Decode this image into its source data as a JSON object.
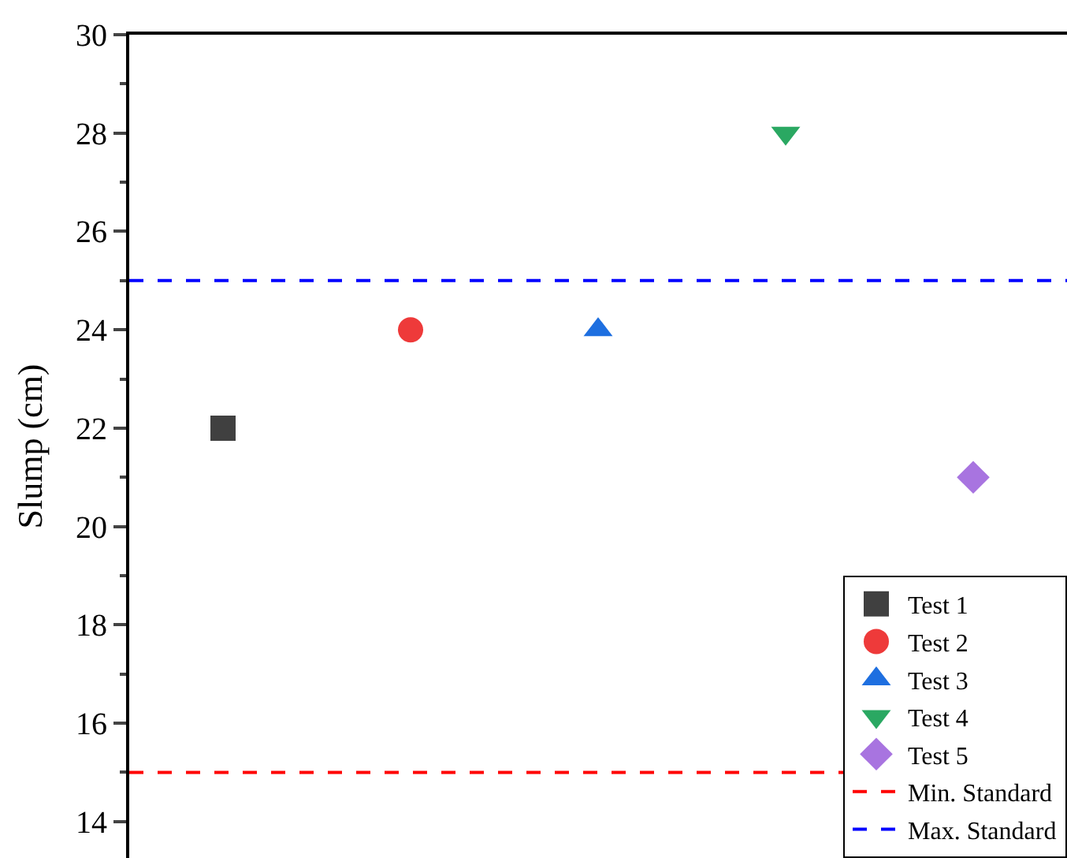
{
  "chart_data": {
    "type": "scatter",
    "ylabel": "Slump (cm)",
    "categories": [
      null,
      null,
      null,
      null,
      null
    ],
    "series": [
      {
        "name": "Test 1",
        "color": "#404040",
        "marker": "square",
        "values": [
          22,
          null,
          null,
          null,
          null
        ]
      },
      {
        "name": "Test 2",
        "color": "#ee3a3a",
        "marker": "circle",
        "values": [
          null,
          24,
          null,
          null,
          null
        ]
      },
      {
        "name": "Test 3",
        "color": "#1e6fe0",
        "marker": "triangle",
        "values": [
          null,
          null,
          24,
          null,
          null
        ]
      },
      {
        "name": "Test 4",
        "color": "#2aa862",
        "marker": "triangle-down",
        "values": [
          null,
          null,
          null,
          28,
          null
        ]
      },
      {
        "name": "Test 5",
        "color": "#a874e0",
        "marker": "diamond",
        "values": [
          null,
          null,
          null,
          null,
          21
        ]
      }
    ],
    "ref_lines": [
      {
        "axis": "y",
        "value": 15,
        "label": "Min. Standard",
        "color": "#ff0000",
        "line_style": "dashed"
      },
      {
        "axis": "y",
        "value": 25,
        "label": "Max. Standard",
        "color": "#0000ff",
        "line_style": "dashed"
      }
    ],
    "ylim": [
      13.26,
      30
    ],
    "yticks": [
      14,
      {
        "value": 15,
        "label": null
      },
      16,
      {
        "value": 17,
        "label": null
      },
      18,
      {
        "value": 19,
        "label": null
      },
      20,
      {
        "value": 21,
        "label": null
      },
      22,
      {
        "value": 23,
        "label": null
      },
      24,
      {
        "value": 25,
        "label": null
      },
      26,
      {
        "value": 27,
        "label": null
      },
      28,
      {
        "value": 29,
        "label": null
      },
      30
    ],
    "tick_labels": "y",
    "legend": "bottom right"
  }
}
